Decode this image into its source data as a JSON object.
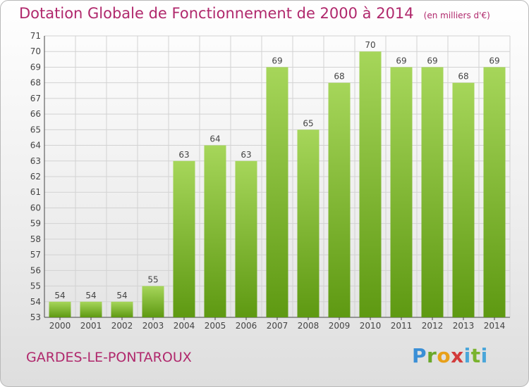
{
  "header": {
    "title": "Dotation Globale de Fonctionnement de 2000 à 2014",
    "unit": "(en milliers d'€)"
  },
  "footer": {
    "commune": "GARDES-LE-PONTAROUX",
    "logo": "Proxiti"
  },
  "colors": {
    "bar_light": "#a6d65a",
    "bar_dark": "#5e9912",
    "text": "#b0286c",
    "grid": "#d2d2d2"
  },
  "chart_data": {
    "type": "bar",
    "title": "Dotation Globale de Fonctionnement de 2000 à 2014",
    "subtitle": "(en milliers d'€)",
    "xlabel": "",
    "ylabel": "",
    "categories": [
      "2000",
      "2001",
      "2002",
      "2003",
      "2004",
      "2005",
      "2006",
      "2007",
      "2008",
      "2009",
      "2010",
      "2011",
      "2012",
      "2013",
      "2014"
    ],
    "values": [
      54,
      54,
      54,
      55,
      63,
      64,
      63,
      69,
      65,
      68,
      70,
      69,
      69,
      68,
      69
    ],
    "ylim": [
      53,
      71
    ],
    "yticks": [
      53,
      54,
      55,
      56,
      57,
      58,
      59,
      60,
      61,
      62,
      63,
      64,
      65,
      66,
      67,
      68,
      69,
      70,
      71
    ],
    "grid": true,
    "data_labels": true
  }
}
